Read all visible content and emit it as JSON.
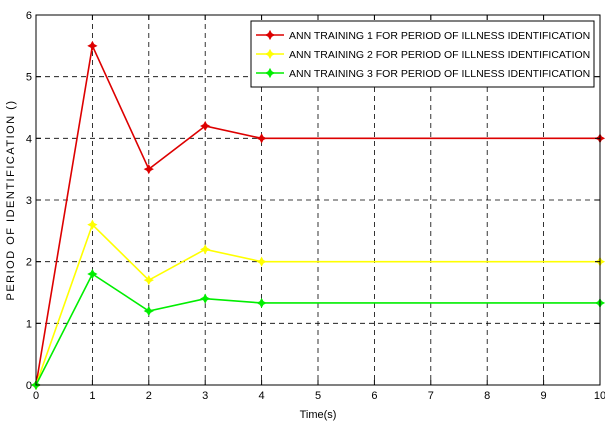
{
  "chart_data": {
    "type": "line",
    "title": "",
    "xlabel": "Time(s)",
    "ylabel": "PERIOD OF IDENTIFICATION ()",
    "xlim": [
      0,
      10
    ],
    "ylim": [
      0,
      6
    ],
    "x_ticks": [
      "0",
      "1",
      "2",
      "3",
      "4",
      "5",
      "6",
      "7",
      "8",
      "9",
      "10"
    ],
    "y_ticks": [
      "0",
      "1",
      "2",
      "3",
      "4",
      "5",
      "6"
    ],
    "grid": true,
    "legend_position": "top-right",
    "x": [
      0,
      1,
      2,
      3,
      4,
      10
    ],
    "series": [
      {
        "name": "ANN TRAINING 1 FOR PERIOD OF ILLNESS IDENTIFICATION",
        "color": "#dd0000",
        "values": [
          0,
          5.5,
          3.5,
          4.2,
          4.0,
          4.0
        ]
      },
      {
        "name": "ANN TRAINING 2 FOR PERIOD OF ILLNESS IDENTIFICATION",
        "color": "#ffff00",
        "values": [
          0,
          2.6,
          1.7,
          2.2,
          2.0,
          2.0
        ]
      },
      {
        "name": "ANN TRAINING 3 FOR PERIOD OF ILLNESS IDENTIFICATION",
        "color": "#00ee00",
        "values": [
          0,
          1.8,
          1.2,
          1.4,
          1.33,
          1.33
        ]
      }
    ]
  }
}
